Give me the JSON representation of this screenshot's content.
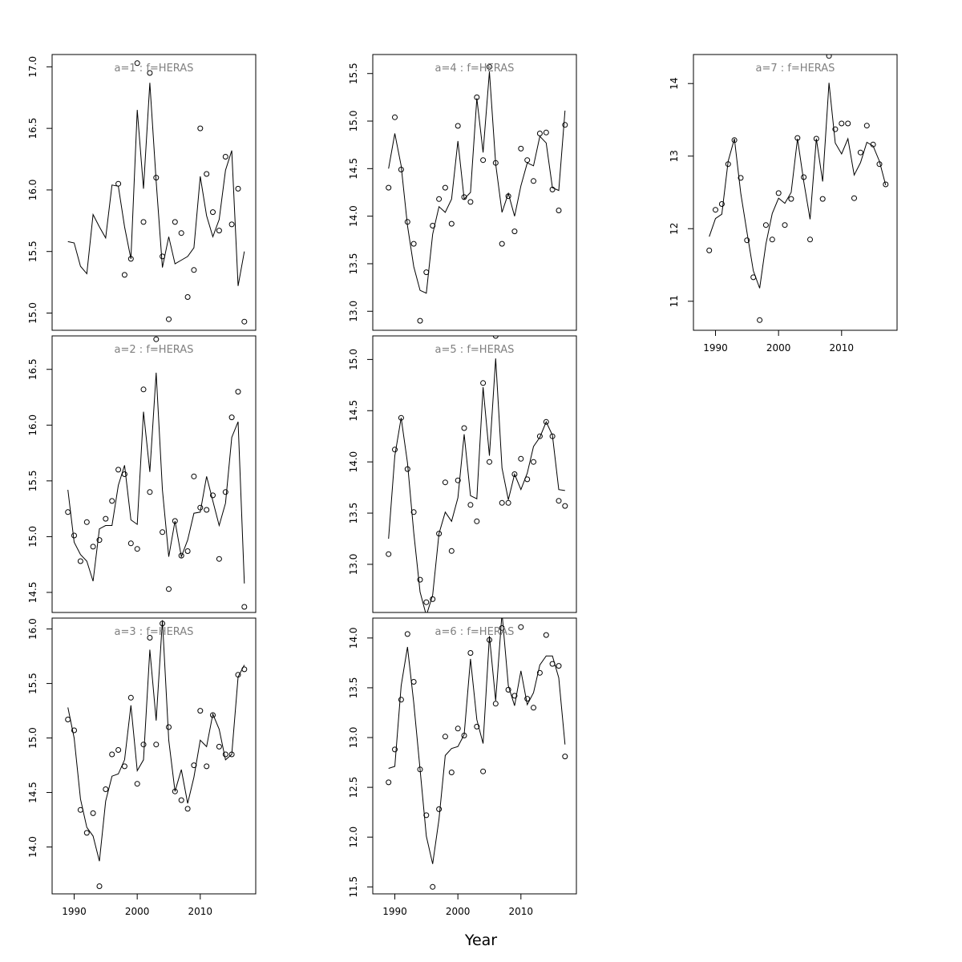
{
  "xlabel": "Year",
  "chart_data": [
    {
      "type": "line",
      "title": "a=1 : f=HERAS",
      "x": [
        1989,
        1990,
        1991,
        1992,
        1993,
        1994,
        1995,
        1996,
        1997,
        1998,
        1999,
        2000,
        2001,
        2002,
        2003,
        2004,
        2005,
        2006,
        2007,
        2008,
        2009,
        2010,
        2011,
        2012,
        2013,
        2014,
        2015,
        2016,
        2017
      ],
      "series": [
        {
          "style": "points",
          "values": [
            null,
            null,
            null,
            null,
            null,
            null,
            null,
            null,
            16.05,
            15.31,
            15.44,
            17.03,
            15.74,
            16.95,
            16.1,
            15.46,
            14.95,
            15.74,
            15.65,
            15.13,
            15.35,
            16.5,
            16.13,
            15.82,
            15.67,
            16.27,
            15.72,
            16.01,
            14.93
          ]
        },
        {
          "style": "line",
          "values": [
            15.58,
            15.57,
            15.38,
            15.32,
            15.8,
            15.7,
            15.61,
            16.04,
            16.03,
            15.7,
            15.44,
            16.65,
            16.01,
            16.87,
            16.07,
            15.37,
            15.62,
            15.4,
            15.43,
            15.46,
            15.53,
            16.11,
            15.79,
            15.62,
            15.76,
            16.16,
            16.32,
            15.22,
            15.5
          ]
        }
      ],
      "xlim": [
        1986.5,
        2018.8
      ],
      "ylim": [
        14.86,
        17.1
      ],
      "yticks": [
        15.0,
        15.5,
        16.0,
        16.5,
        17.0
      ],
      "ytick_labels": [
        "15.0",
        "15.5",
        "16.0",
        "16.5",
        "17.0"
      ]
    },
    {
      "type": "line",
      "title": "a=2 : f=HERAS",
      "x": [
        1989,
        1990,
        1991,
        1992,
        1993,
        1994,
        1995,
        1996,
        1997,
        1998,
        1999,
        2000,
        2001,
        2002,
        2003,
        2004,
        2005,
        2006,
        2007,
        2008,
        2009,
        2010,
        2011,
        2012,
        2013,
        2014,
        2015,
        2016,
        2017
      ],
      "series": [
        {
          "style": "points",
          "values": [
            15.22,
            15.01,
            14.78,
            15.13,
            14.91,
            14.97,
            15.16,
            15.32,
            15.6,
            15.56,
            14.94,
            14.89,
            16.32,
            15.4,
            16.77,
            15.04,
            14.53,
            15.14,
            14.83,
            14.87,
            15.54,
            15.26,
            15.24,
            15.37,
            14.8,
            15.4,
            16.07,
            16.3,
            14.37
          ]
        },
        {
          "style": "line",
          "values": [
            15.42,
            14.95,
            14.84,
            14.78,
            14.6,
            15.07,
            15.1,
            15.1,
            15.46,
            15.64,
            15.15,
            15.11,
            16.12,
            15.58,
            16.47,
            15.42,
            14.82,
            15.14,
            14.82,
            14.97,
            15.21,
            15.22,
            15.54,
            15.32,
            15.1,
            15.3,
            15.89,
            16.03,
            14.58
          ]
        }
      ],
      "xlim": [
        1986.5,
        2018.8
      ],
      "ylim": [
        14.32,
        16.8
      ],
      "yticks": [
        14.5,
        15.0,
        15.5,
        16.0,
        16.5
      ],
      "ytick_labels": [
        "14.5",
        "15.0",
        "15.5",
        "16.0",
        "16.5"
      ]
    },
    {
      "type": "line",
      "title": "a=3 : f=HERAS",
      "x": [
        1989,
        1990,
        1991,
        1992,
        1993,
        1994,
        1995,
        1996,
        1997,
        1998,
        1999,
        2000,
        2001,
        2002,
        2003,
        2004,
        2005,
        2006,
        2007,
        2008,
        2009,
        2010,
        2011,
        2012,
        2013,
        2014,
        2015,
        2016,
        2017
      ],
      "series": [
        {
          "style": "points",
          "values": [
            15.17,
            15.07,
            14.34,
            14.13,
            14.31,
            13.64,
            14.53,
            14.85,
            14.89,
            14.74,
            15.37,
            14.58,
            14.94,
            15.92,
            14.94,
            16.05,
            15.1,
            14.51,
            14.43,
            14.35,
            14.75,
            15.25,
            14.74,
            15.21,
            14.92,
            14.85,
            14.85,
            15.58,
            15.63
          ]
        },
        {
          "style": "line",
          "values": [
            15.28,
            15.0,
            14.44,
            14.18,
            14.1,
            13.87,
            14.42,
            14.65,
            14.67,
            14.8,
            15.3,
            14.7,
            14.8,
            15.81,
            15.16,
            16.08,
            14.98,
            14.51,
            14.71,
            14.4,
            14.64,
            14.98,
            14.92,
            15.22,
            15.08,
            14.8,
            14.85,
            15.56,
            15.67
          ]
        }
      ],
      "xlim": [
        1986.5,
        2018.8
      ],
      "ylim": [
        13.57,
        16.1
      ],
      "yticks": [
        14.0,
        14.5,
        15.0,
        15.5,
        16.0
      ],
      "ytick_labels": [
        "14.0",
        "14.5",
        "15.0",
        "15.5",
        "16.0"
      ]
    },
    {
      "type": "line",
      "title": "a=4 : f=HERAS",
      "x": [
        1989,
        1990,
        1991,
        1992,
        1993,
        1994,
        1995,
        1996,
        1997,
        1998,
        1999,
        2000,
        2001,
        2002,
        2003,
        2004,
        2005,
        2006,
        2007,
        2008,
        2009,
        2010,
        2011,
        2012,
        2013,
        2014,
        2015,
        2016,
        2017
      ],
      "series": [
        {
          "style": "points",
          "values": [
            14.3,
            15.04,
            14.49,
            13.94,
            13.71,
            12.9,
            13.41,
            13.9,
            14.18,
            14.3,
            13.92,
            14.95,
            14.2,
            14.15,
            15.25,
            14.59,
            15.57,
            14.56,
            13.71,
            14.21,
            13.84,
            14.71,
            14.59,
            14.37,
            14.87,
            14.88,
            14.28,
            14.06,
            14.96
          ]
        },
        {
          "style": "line",
          "values": [
            14.5,
            14.87,
            14.53,
            13.9,
            13.47,
            13.22,
            13.19,
            13.81,
            14.1,
            14.04,
            14.18,
            14.79,
            14.18,
            14.25,
            15.24,
            14.67,
            15.52,
            14.55,
            14.04,
            14.24,
            14.0,
            14.32,
            14.56,
            14.53,
            14.84,
            14.77,
            14.3,
            14.27,
            15.11
          ]
        }
      ],
      "xlim": [
        1986.5,
        2018.8
      ],
      "ylim": [
        12.8,
        15.7
      ],
      "yticks": [
        13.0,
        13.5,
        14.0,
        14.5,
        15.0,
        15.5
      ],
      "ytick_labels": [
        "13.0",
        "13.5",
        "14.0",
        "14.5",
        "15.0",
        "15.5"
      ]
    },
    {
      "type": "line",
      "title": "a=5 : f=HERAS",
      "x": [
        1989,
        1990,
        1991,
        1992,
        1993,
        1994,
        1995,
        1996,
        1997,
        1998,
        1999,
        2000,
        2001,
        2002,
        2003,
        2004,
        2005,
        2006,
        2007,
        2008,
        2009,
        2010,
        2011,
        2012,
        2013,
        2014,
        2015,
        2016,
        2017
      ],
      "series": [
        {
          "style": "points",
          "values": [
            13.1,
            14.12,
            14.43,
            13.93,
            13.51,
            12.85,
            12.63,
            12.66,
            13.3,
            13.8,
            13.13,
            13.82,
            14.33,
            13.58,
            13.42,
            14.77,
            14.0,
            15.23,
            13.6,
            13.6,
            13.88,
            14.03,
            13.83,
            14.0,
            14.25,
            14.39,
            14.25,
            13.62,
            13.57
          ]
        },
        {
          "style": "line",
          "values": [
            13.25,
            14.06,
            14.43,
            13.99,
            13.31,
            12.73,
            12.5,
            12.7,
            13.3,
            13.51,
            13.42,
            13.65,
            14.27,
            13.67,
            13.64,
            14.73,
            14.06,
            15.01,
            13.94,
            13.63,
            13.88,
            13.73,
            13.89,
            14.15,
            14.24,
            14.39,
            14.26,
            13.73,
            13.72
          ]
        }
      ],
      "xlim": [
        1986.5,
        2018.8
      ],
      "ylim": [
        12.53,
        15.23
      ],
      "yticks": [
        13.0,
        13.5,
        14.0,
        14.5,
        15.0
      ],
      "ytick_labels": [
        "13.0",
        "13.5",
        "14.0",
        "14.5",
        "15.0"
      ]
    },
    {
      "type": "line",
      "title": "a=6 : f=HERAS",
      "x": [
        1989,
        1990,
        1991,
        1992,
        1993,
        1994,
        1995,
        1996,
        1997,
        1998,
        1999,
        2000,
        2001,
        2002,
        2003,
        2004,
        2005,
        2006,
        2007,
        2008,
        2009,
        2010,
        2011,
        2012,
        2013,
        2014,
        2015,
        2016,
        2017
      ],
      "series": [
        {
          "style": "points",
          "values": [
            12.55,
            12.88,
            13.38,
            14.04,
            13.56,
            12.68,
            12.22,
            11.5,
            12.28,
            13.01,
            12.65,
            13.09,
            13.02,
            13.85,
            13.11,
            12.66,
            13.98,
            13.34,
            14.1,
            13.48,
            13.42,
            14.11,
            13.39,
            13.3,
            13.65,
            14.03,
            13.74,
            13.72,
            12.81
          ]
        },
        {
          "style": "line",
          "values": [
            12.69,
            12.71,
            13.52,
            13.91,
            13.35,
            12.68,
            12.01,
            11.73,
            12.18,
            12.82,
            12.89,
            12.91,
            13.03,
            13.79,
            13.18,
            12.94,
            14.02,
            13.37,
            14.25,
            13.52,
            13.32,
            13.67,
            13.33,
            13.45,
            13.73,
            13.82,
            13.82,
            13.6,
            12.93
          ]
        }
      ],
      "xlim": [
        1986.5,
        2018.8
      ],
      "ylim": [
        11.43,
        14.2
      ],
      "yticks": [
        11.5,
        12.0,
        12.5,
        13.0,
        13.5,
        14.0
      ],
      "ytick_labels": [
        "11.5",
        "12.0",
        "12.5",
        "13.0",
        "13.5",
        "14.0"
      ]
    },
    {
      "type": "line",
      "title": "a=7 : f=HERAS",
      "x": [
        1989,
        1990,
        1991,
        1992,
        1993,
        1994,
        1995,
        1996,
        1997,
        1998,
        1999,
        2000,
        2001,
        2002,
        2003,
        2004,
        2005,
        2006,
        2007,
        2008,
        2009,
        2010,
        2011,
        2012,
        2013,
        2014,
        2015,
        2016,
        2017
      ],
      "series": [
        {
          "style": "points",
          "values": [
            11.7,
            12.26,
            12.34,
            12.89,
            13.22,
            12.7,
            11.84,
            11.33,
            10.74,
            12.05,
            11.85,
            12.49,
            12.05,
            12.41,
            13.25,
            12.71,
            11.85,
            13.24,
            12.41,
            14.38,
            13.37,
            13.45,
            13.45,
            12.42,
            13.05,
            13.42,
            13.16,
            12.89,
            12.61
          ]
        },
        {
          "style": "line",
          "values": [
            11.89,
            12.14,
            12.2,
            12.93,
            13.24,
            12.49,
            11.95,
            11.42,
            11.18,
            11.79,
            12.21,
            12.42,
            12.35,
            12.5,
            13.24,
            12.65,
            12.13,
            13.24,
            12.65,
            14.01,
            13.18,
            13.03,
            13.24,
            12.74,
            12.91,
            13.19,
            13.14,
            12.93,
            12.6
          ]
        }
      ],
      "xlim": [
        1986.5,
        2018.8
      ],
      "ylim": [
        10.6,
        14.4
      ],
      "yticks": [
        11,
        12,
        13,
        14
      ],
      "ytick_labels": [
        "11",
        "12",
        "13",
        "14"
      ],
      "xticks": [
        1990,
        2000,
        2010
      ],
      "xtick_labels": [
        "1990",
        "2000",
        "2010"
      ]
    }
  ],
  "bottom_axes": {
    "col1": {
      "xticks": [
        1990,
        2000,
        2010
      ],
      "xtick_labels": [
        "1990",
        "2000",
        "2010"
      ]
    },
    "col2": {
      "xticks": [
        1990,
        2000,
        2010
      ],
      "xtick_labels": [
        "1990",
        "2000",
        "2010"
      ]
    }
  }
}
